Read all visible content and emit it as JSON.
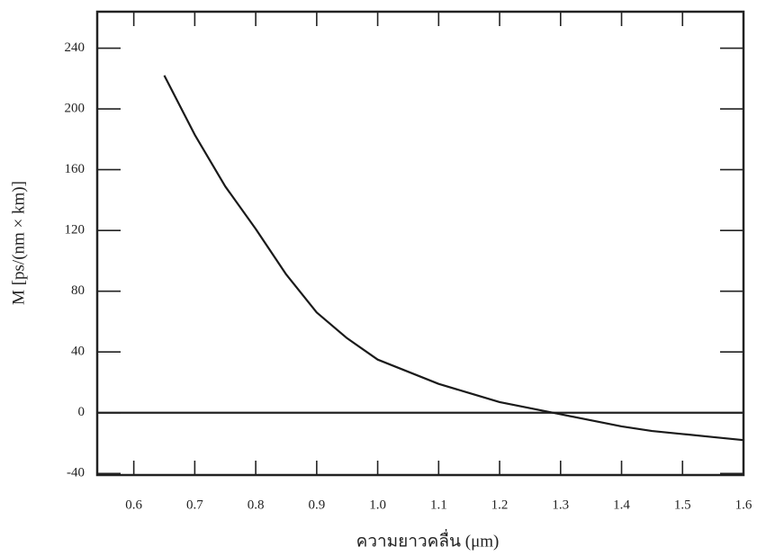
{
  "chart_data": {
    "type": "line",
    "x_label": "ความยาวคลื่น (μm)",
    "y_label": "M [ps/(nm × km)]",
    "x": [
      0.65,
      0.7,
      0.75,
      0.8,
      0.85,
      0.9,
      0.95,
      1.0,
      1.05,
      1.1,
      1.15,
      1.2,
      1.25,
      1.3,
      1.35,
      1.4,
      1.45,
      1.5,
      1.55,
      1.6
    ],
    "values": [
      222,
      183,
      149,
      121,
      91,
      66,
      49,
      35,
      27,
      19,
      13,
      7,
      3,
      -1,
      -5,
      -9,
      -12,
      -14,
      -16,
      -18
    ],
    "color": "#1a1a1a",
    "xlim": [
      0.54,
      1.6
    ],
    "ylim": [
      -41,
      264
    ],
    "xticks": [
      0.6,
      0.7,
      0.8,
      0.9,
      {
        "value": 1.0,
        "label": "1.0"
      },
      1.1,
      1.2,
      1.3,
      1.4,
      1.5,
      1.6
    ],
    "yticks": [
      -40,
      0,
      40,
      80,
      120,
      160,
      200,
      240
    ],
    "hline": 0
  }
}
